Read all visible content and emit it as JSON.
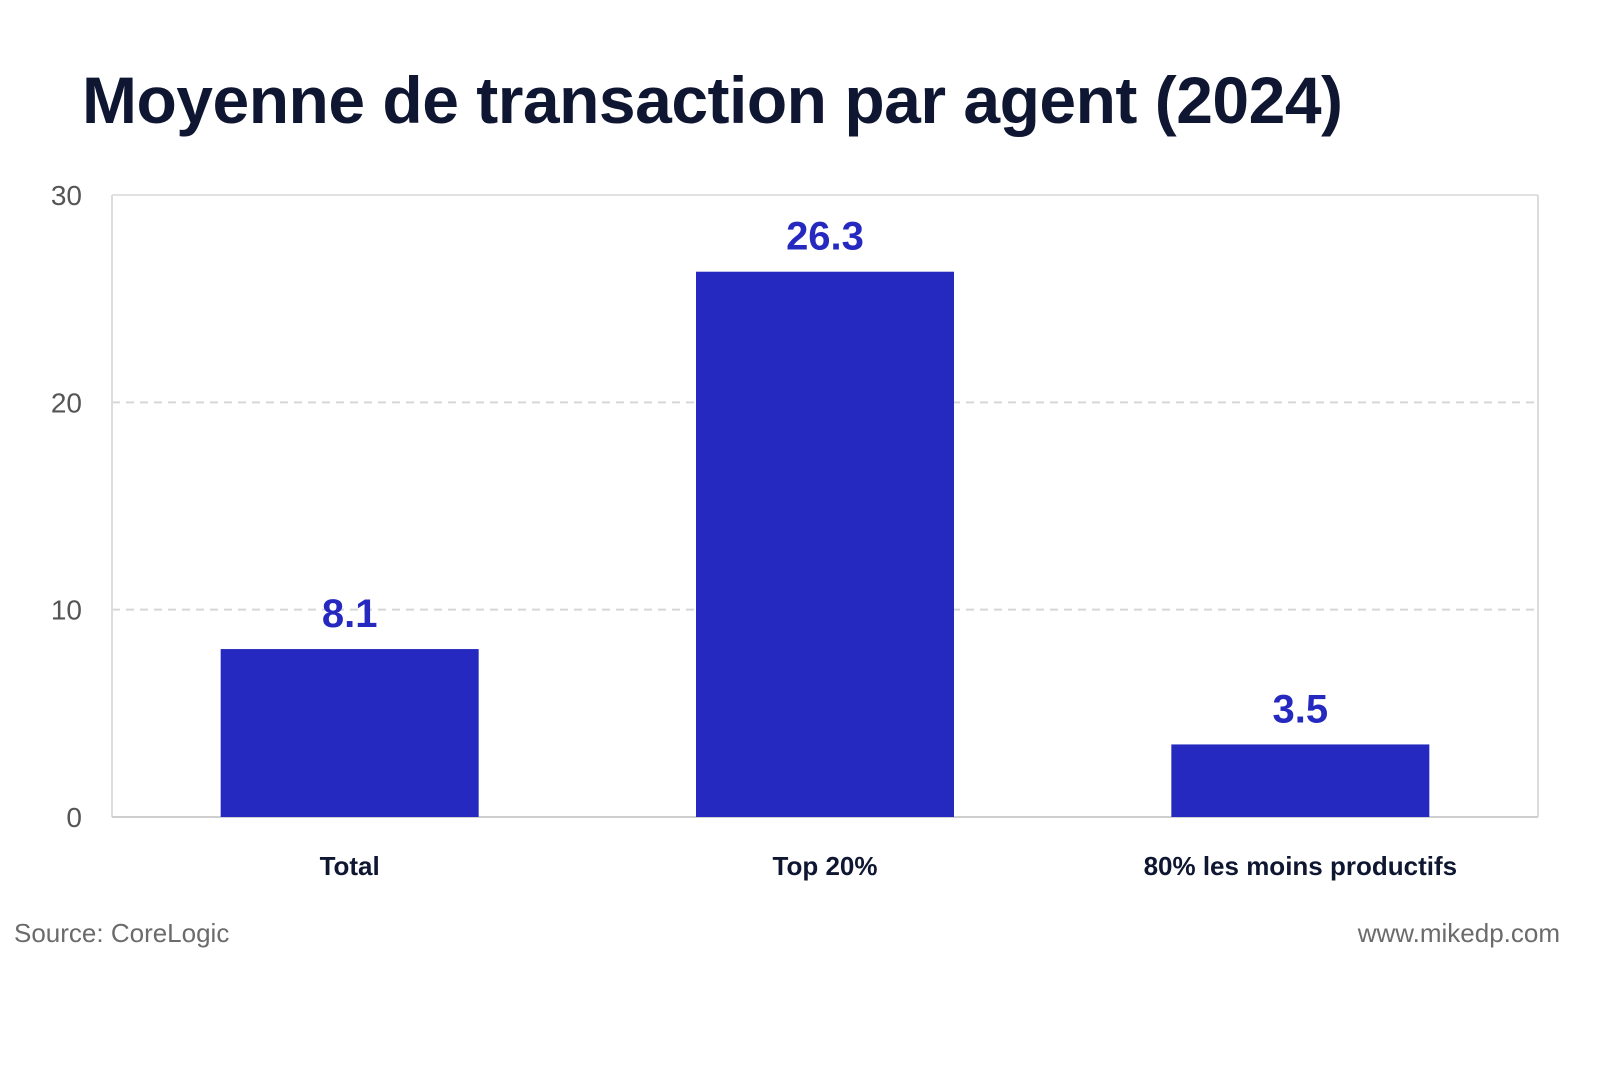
{
  "chart_data": {
    "type": "bar",
    "title": "Moyenne de transaction par agent (2024)",
    "categories": [
      "Total",
      "Top 20%",
      "80% les moins productifs"
    ],
    "values": [
      8.1,
      26.3,
      3.5
    ],
    "value_labels": [
      "8.1",
      "26.3",
      "3.5"
    ],
    "ylim": [
      0,
      30
    ],
    "yticks": [
      "0",
      "10",
      "20",
      "30"
    ],
    "grid": true,
    "bar_color": "#2529bf",
    "label_color": "#2529bf",
    "xlabel": "",
    "ylabel": ""
  },
  "footer": {
    "source": "Source: CoreLogic",
    "site": "www.mikedp.com"
  }
}
